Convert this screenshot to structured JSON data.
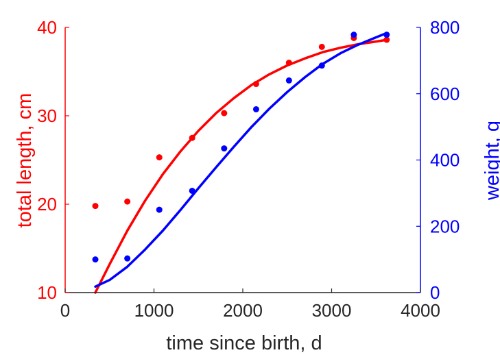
{
  "chart_data": {
    "type": "scatter",
    "title": "",
    "xlabel": "time since birth, d",
    "ylabel": "total length, cm",
    "ylabel_right": "weight, g",
    "xlim": [
      0,
      4000
    ],
    "ylim": [
      10,
      40
    ],
    "ylim_right": [
      0,
      800
    ],
    "xticks": [
      "0",
      "1000",
      "2000",
      "3000",
      "4000"
    ],
    "yticks": [
      "10",
      "20",
      "30",
      "40"
    ],
    "yticks_right": [
      "0",
      "200",
      "400",
      "600",
      "800"
    ],
    "grid": false,
    "colors": {
      "length": "#ff0000",
      "weight": "#0000ff",
      "axis": "#262626"
    },
    "series": [
      {
        "axis": "left",
        "color": "#ff0000",
        "points": [
          [
            340,
            19.8
          ],
          [
            700,
            20.3
          ],
          [
            1060,
            25.3
          ],
          [
            1430,
            27.5
          ],
          [
            1790,
            30.3
          ],
          [
            2150,
            33.6
          ],
          [
            2520,
            36.0
          ],
          [
            2890,
            37.8
          ],
          [
            3250,
            38.8
          ],
          [
            3620,
            38.6
          ]
        ],
        "curve": [
          [
            340,
            10.0
          ],
          [
            500,
            13.2
          ],
          [
            700,
            17.0
          ],
          [
            900,
            20.4
          ],
          [
            1100,
            23.4
          ],
          [
            1300,
            26.0
          ],
          [
            1500,
            28.3
          ],
          [
            1700,
            30.3
          ],
          [
            1900,
            32.0
          ],
          [
            2100,
            33.5
          ],
          [
            2300,
            34.7
          ],
          [
            2500,
            35.7
          ],
          [
            2700,
            36.5
          ],
          [
            2900,
            37.2
          ],
          [
            3100,
            37.7
          ],
          [
            3300,
            38.1
          ],
          [
            3500,
            38.4
          ],
          [
            3620,
            38.6
          ]
        ]
      },
      {
        "axis": "right",
        "color": "#0000ff",
        "points": [
          [
            340,
            100
          ],
          [
            700,
            103
          ],
          [
            1060,
            250
          ],
          [
            1430,
            307
          ],
          [
            1790,
            435
          ],
          [
            2150,
            553
          ],
          [
            2520,
            640
          ],
          [
            2890,
            685
          ],
          [
            3250,
            778
          ],
          [
            3620,
            778
          ]
        ],
        "curve": [
          [
            340,
            18
          ],
          [
            500,
            38
          ],
          [
            700,
            78
          ],
          [
            900,
            130
          ],
          [
            1100,
            187
          ],
          [
            1300,
            250
          ],
          [
            1500,
            315
          ],
          [
            1700,
            378
          ],
          [
            1900,
            440
          ],
          [
            2100,
            500
          ],
          [
            2300,
            555
          ],
          [
            2500,
            605
          ],
          [
            2700,
            650
          ],
          [
            2900,
            690
          ],
          [
            3100,
            722
          ],
          [
            3300,
            748
          ],
          [
            3500,
            770
          ],
          [
            3620,
            783
          ]
        ]
      }
    ]
  }
}
